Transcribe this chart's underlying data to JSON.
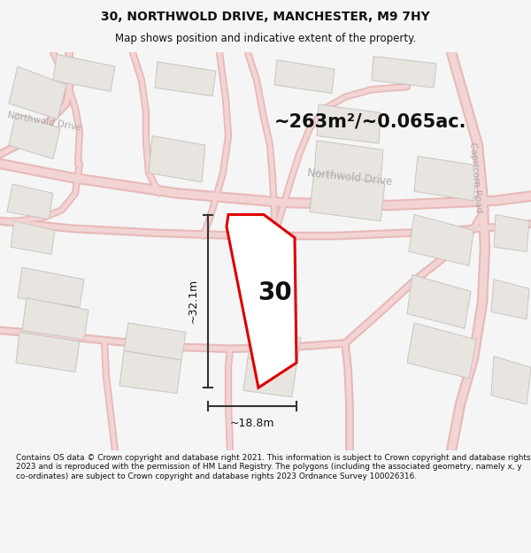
{
  "title": "30, NORTHWOLD DRIVE, MANCHESTER, M9 7HY",
  "subtitle": "Map shows position and indicative extent of the property.",
  "area_text": "~263m²/~0.065ac.",
  "width_text": "~18.8m",
  "height_text": "~32.1m",
  "number_label": "30",
  "footer_text": "Contains OS data © Crown copyright and database right 2021. This information is subject to Crown copyright and database rights 2023 and is reproduced with the permission of HM Land Registry. The polygons (including the associated geometry, namely x, y co-ordinates) are subject to Crown copyright and database rights 2023 Ordnance Survey 100026316.",
  "map_bg": "#f7f6f5",
  "road_fill": "#f2d4d4",
  "road_edge": "#e8b8b8",
  "building_fill": "#e8e5e0",
  "building_edge": "#c8c4c0",
  "highlight_fill": "#ffffff",
  "highlight_edge": "#dd0000",
  "dim_color": "#333333",
  "road_label_color": "#b0aaaa",
  "text_dark": "#111111",
  "footer_bg": "#f5f5f5"
}
